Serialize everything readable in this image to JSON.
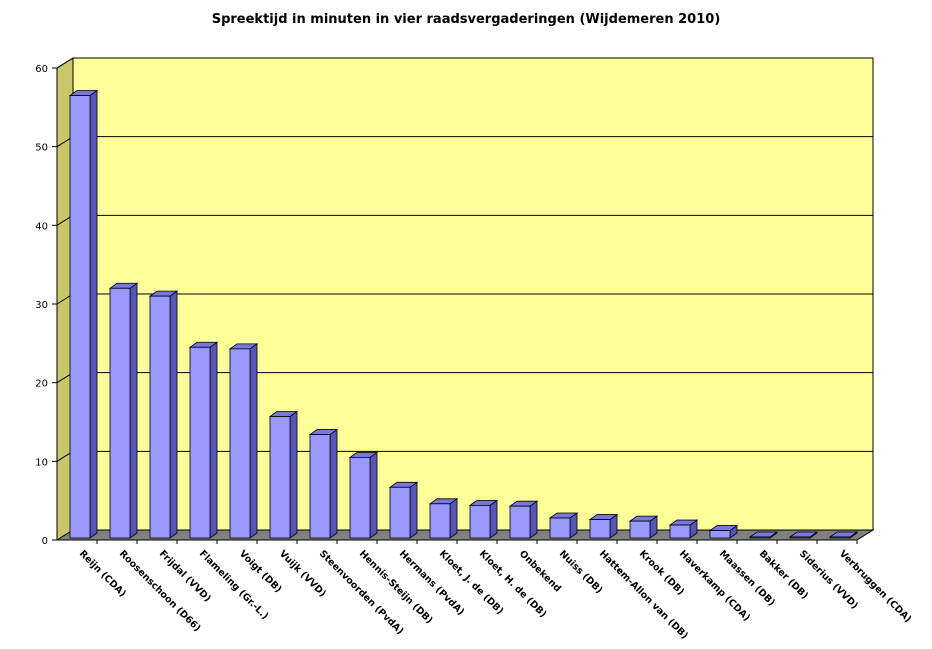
{
  "chart_data": {
    "type": "bar",
    "title": "Spreektijd in minuten in vier raadsvergaderingen (Wijdemeren 2010)",
    "xlabel": "",
    "ylabel": "",
    "ylim": [
      0,
      60
    ],
    "yticks": [
      0,
      10,
      20,
      30,
      40,
      50,
      60
    ],
    "grid": true,
    "categories": [
      "Reijn (CDA)",
      "Roosenschoon (D66)",
      "Frijdal (VVD)",
      "Flameling (Gr.-L.)",
      "Voigt (DB)",
      "Vuijk (VVD)",
      "Steenvoorden (PvdA)",
      "Hennis-Steijn (DB)",
      "Hermans (PvdA)",
      "Kloet, J. de (DB)",
      "Kloet, H. de (DB)",
      "Onbekend",
      "Nuiss (DB)",
      "Hattem-Allon van (DB)",
      "Krook (DB)",
      "Haverkamp (CDA)",
      "Maassen (DB)",
      "Bakker (DB)",
      "Siderius (VVD)",
      "Verbruggen (CDA)"
    ],
    "values": [
      56.5,
      32,
      31,
      24.5,
      24.3,
      15.7,
      13.4,
      10.5,
      6.7,
      4.6,
      4.4,
      4.3,
      2.8,
      2.6,
      2.4,
      1.9,
      1.2,
      0.1,
      0.1,
      0.1
    ],
    "colors": {
      "plot_background": "#ffff99",
      "bar_front": "#9999ff",
      "bar_side": "#5555bb",
      "bar_top": "#7777dd",
      "floor": "#808080",
      "wall_side": "#c8c86a"
    }
  }
}
